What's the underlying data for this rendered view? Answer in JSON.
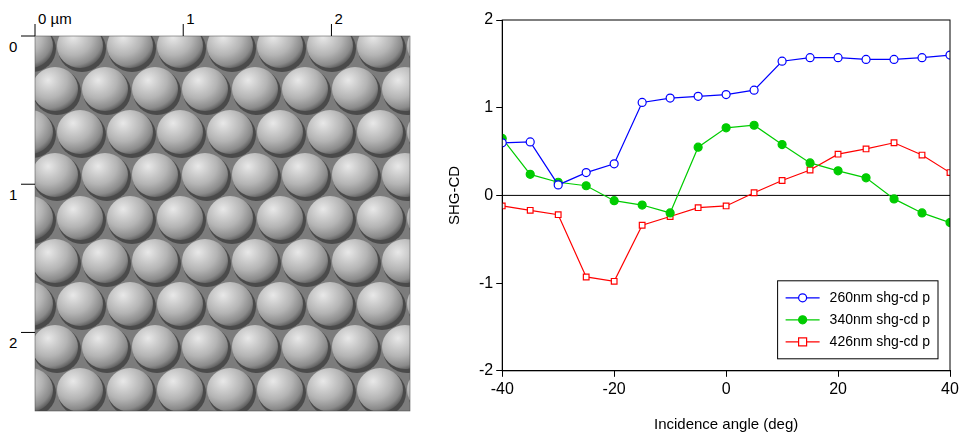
{
  "image_panel": {
    "xlim": [
      0,
      2.53
    ],
    "ylim": [
      0,
      2.53
    ],
    "x_ticks": [
      {
        "value": 0,
        "label": "0 µm"
      },
      1,
      2
    ],
    "y_ticks": [
      0,
      1,
      2
    ]
  },
  "chart_data": {
    "type": "line",
    "x_label": "Incidence angle (deg)",
    "y_label": "SHG-CD",
    "x": [
      -40,
      -35,
      -30,
      -25,
      -20,
      -15,
      -10,
      -5,
      0,
      5,
      10,
      15,
      20,
      25,
      30,
      35,
      40
    ],
    "series": [
      {
        "name": "260nm shg-cd p",
        "color": "#0000ff",
        "marker": "circle_open",
        "values": [
          0.6,
          0.61,
          0.12,
          0.26,
          0.36,
          1.06,
          1.11,
          1.13,
          1.15,
          1.2,
          1.53,
          1.57,
          1.57,
          1.55,
          1.55,
          1.57,
          1.6
        ]
      },
      {
        "name": "340nm shg-cd p",
        "color": "#00cc00",
        "marker": "circle",
        "values": [
          0.65,
          0.24,
          0.15,
          0.11,
          -0.06,
          -0.11,
          -0.2,
          0.55,
          0.77,
          0.8,
          0.58,
          0.37,
          0.28,
          0.2,
          -0.04,
          -0.2,
          -0.31
        ]
      },
      {
        "name": "426nm shg-cd p",
        "color": "#ff0000",
        "marker": "square_open",
        "values": [
          -0.12,
          -0.17,
          -0.22,
          -0.93,
          -0.98,
          -0.34,
          -0.24,
          -0.14,
          -0.12,
          0.03,
          0.17,
          0.29,
          0.47,
          0.53,
          0.6,
          0.46,
          0.26
        ]
      }
    ],
    "xlim": [
      -40,
      40
    ],
    "xticks": [
      -40,
      -20,
      0,
      20,
      40
    ],
    "ylim": [
      -2,
      2
    ],
    "yticks": [
      -2,
      -1,
      0,
      1,
      2
    ],
    "hline": 0,
    "grid": false,
    "legend": "lower right"
  }
}
